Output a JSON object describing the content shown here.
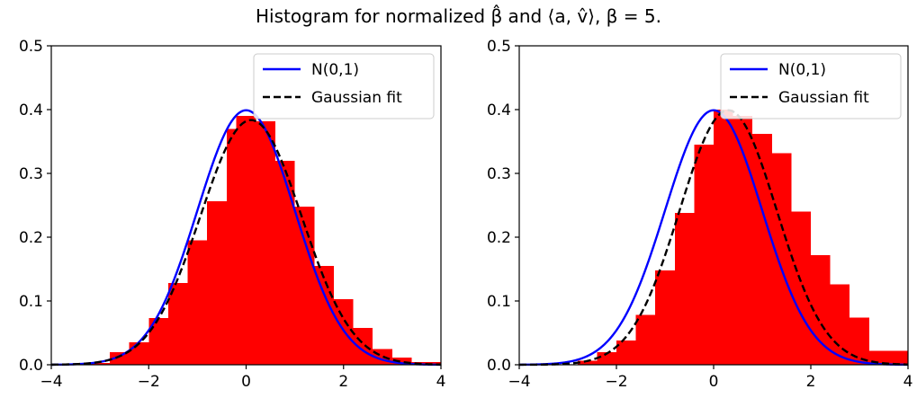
{
  "figure": {
    "title": "Histogram for normalized β̂ and ⟨a, v̂⟩, β = 5."
  },
  "chart_data": [
    {
      "type": "bar",
      "panel": "left",
      "xlim": [
        -4,
        4
      ],
      "ylim": [
        0,
        0.5
      ],
      "xticks": [
        "−4",
        "−2",
        "0",
        "2",
        "4"
      ],
      "yticks": [
        "0.0",
        "0.1",
        "0.2",
        "0.3",
        "0.4",
        "0.5"
      ],
      "histogram": {
        "color": "#ff0000",
        "bin_edges": [
          -3.2,
          -2.8,
          -2.4,
          -2.0,
          -1.6,
          -1.2,
          -0.8,
          -0.4,
          -0.2,
          0.2,
          0.6,
          1.0,
          1.4,
          1.8,
          2.2,
          2.6,
          3.0,
          3.4,
          4.0
        ],
        "values": [
          0.003,
          0.02,
          0.035,
          0.073,
          0.128,
          0.195,
          0.256,
          0.37,
          0.39,
          0.382,
          0.32,
          0.248,
          0.155,
          0.103,
          0.058,
          0.025,
          0.011,
          0.004
        ]
      },
      "series": [
        {
          "name": "N(0,1)",
          "color": "#0000ff",
          "style": "solid",
          "mu": 0.0,
          "sigma": 1.0
        },
        {
          "name": "Gaussian fit",
          "color": "#000000",
          "style": "dashed",
          "mu": 0.1,
          "sigma": 1.04
        }
      ],
      "legend_position": "upper right"
    },
    {
      "type": "bar",
      "panel": "right",
      "xlim": [
        -4,
        4
      ],
      "ylim": [
        0,
        0.5
      ],
      "xticks": [
        "−4",
        "−2",
        "0",
        "2",
        "4"
      ],
      "yticks": [
        "0.0",
        "0.1",
        "0.2",
        "0.3",
        "0.4",
        "0.5"
      ],
      "histogram": {
        "color": "#ff0000",
        "bin_edges": [
          -2.8,
          -2.4,
          -2.0,
          -1.6,
          -1.2,
          -0.8,
          -0.4,
          0.0,
          0.4,
          0.8,
          1.2,
          1.6,
          2.0,
          2.4,
          2.8,
          3.2,
          4.0
        ],
        "values": [
          0.006,
          0.02,
          0.038,
          0.078,
          0.148,
          0.238,
          0.345,
          0.4,
          0.39,
          0.362,
          0.332,
          0.24,
          0.172,
          0.126,
          0.074,
          0.022
        ]
      },
      "series": [
        {
          "name": "N(0,1)",
          "color": "#0000ff",
          "style": "solid",
          "mu": 0.0,
          "sigma": 1.0
        },
        {
          "name": "Gaussian fit",
          "color": "#000000",
          "style": "dashed",
          "mu": 0.3,
          "sigma": 1.0
        }
      ],
      "legend_position": "upper right"
    }
  ]
}
